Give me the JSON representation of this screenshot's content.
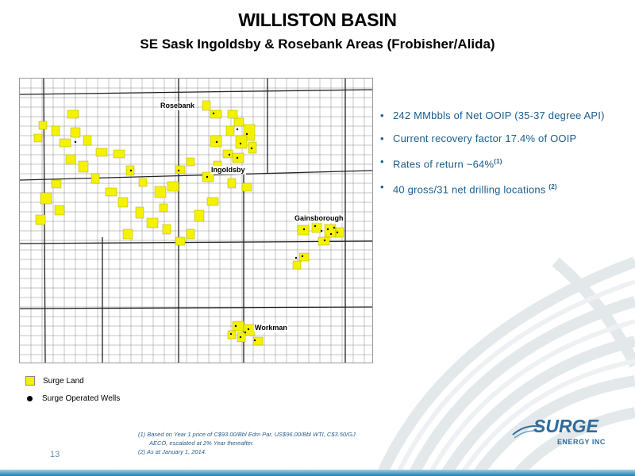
{
  "header": {
    "title": "WILLISTON BASIN",
    "subtitle": "SE Sask Ingoldsby & Rosebank Areas (Frobisher/Alida)"
  },
  "map": {
    "labels": {
      "rosebank": "Rosebank",
      "ingoldsby": "Ingoldsby",
      "gainsborough": "Gainsborough",
      "workman": "Workman"
    },
    "colors": {
      "surge_land": "#f5f200",
      "grid": "#555555",
      "wells": "#000000"
    }
  },
  "bullets": [
    {
      "text": "242 MMbbls of Net OOIP (35-37 degree API)",
      "sup": ""
    },
    {
      "text": "Current recovery factor 17.4% of OOIP",
      "sup": ""
    },
    {
      "text": "Rates of return ~64%",
      "sup": "(1)"
    },
    {
      "text": "40 gross/31 net drilling locations ",
      "sup": "(2)"
    }
  ],
  "legend": {
    "surge_land": "Surge Land",
    "operated_wells": "Surge Operated Wells"
  },
  "footnotes": {
    "line1": "(1)  Based on Year 1 price of C$93.00/Bbl Edm Par, US$96.00/Bbl WTI, C$3.50/GJ",
    "line2": "AECO, escalated at 2% Year thereafter.",
    "line3": "(2)  As at January 1, 2014."
  },
  "page_number": "13",
  "logo": {
    "name": "SURGE",
    "tagline": "ENERGY INC"
  },
  "icons": {
    "bullet": "bullet-dot-icon",
    "logo_swoosh": "swoosh-icon"
  }
}
